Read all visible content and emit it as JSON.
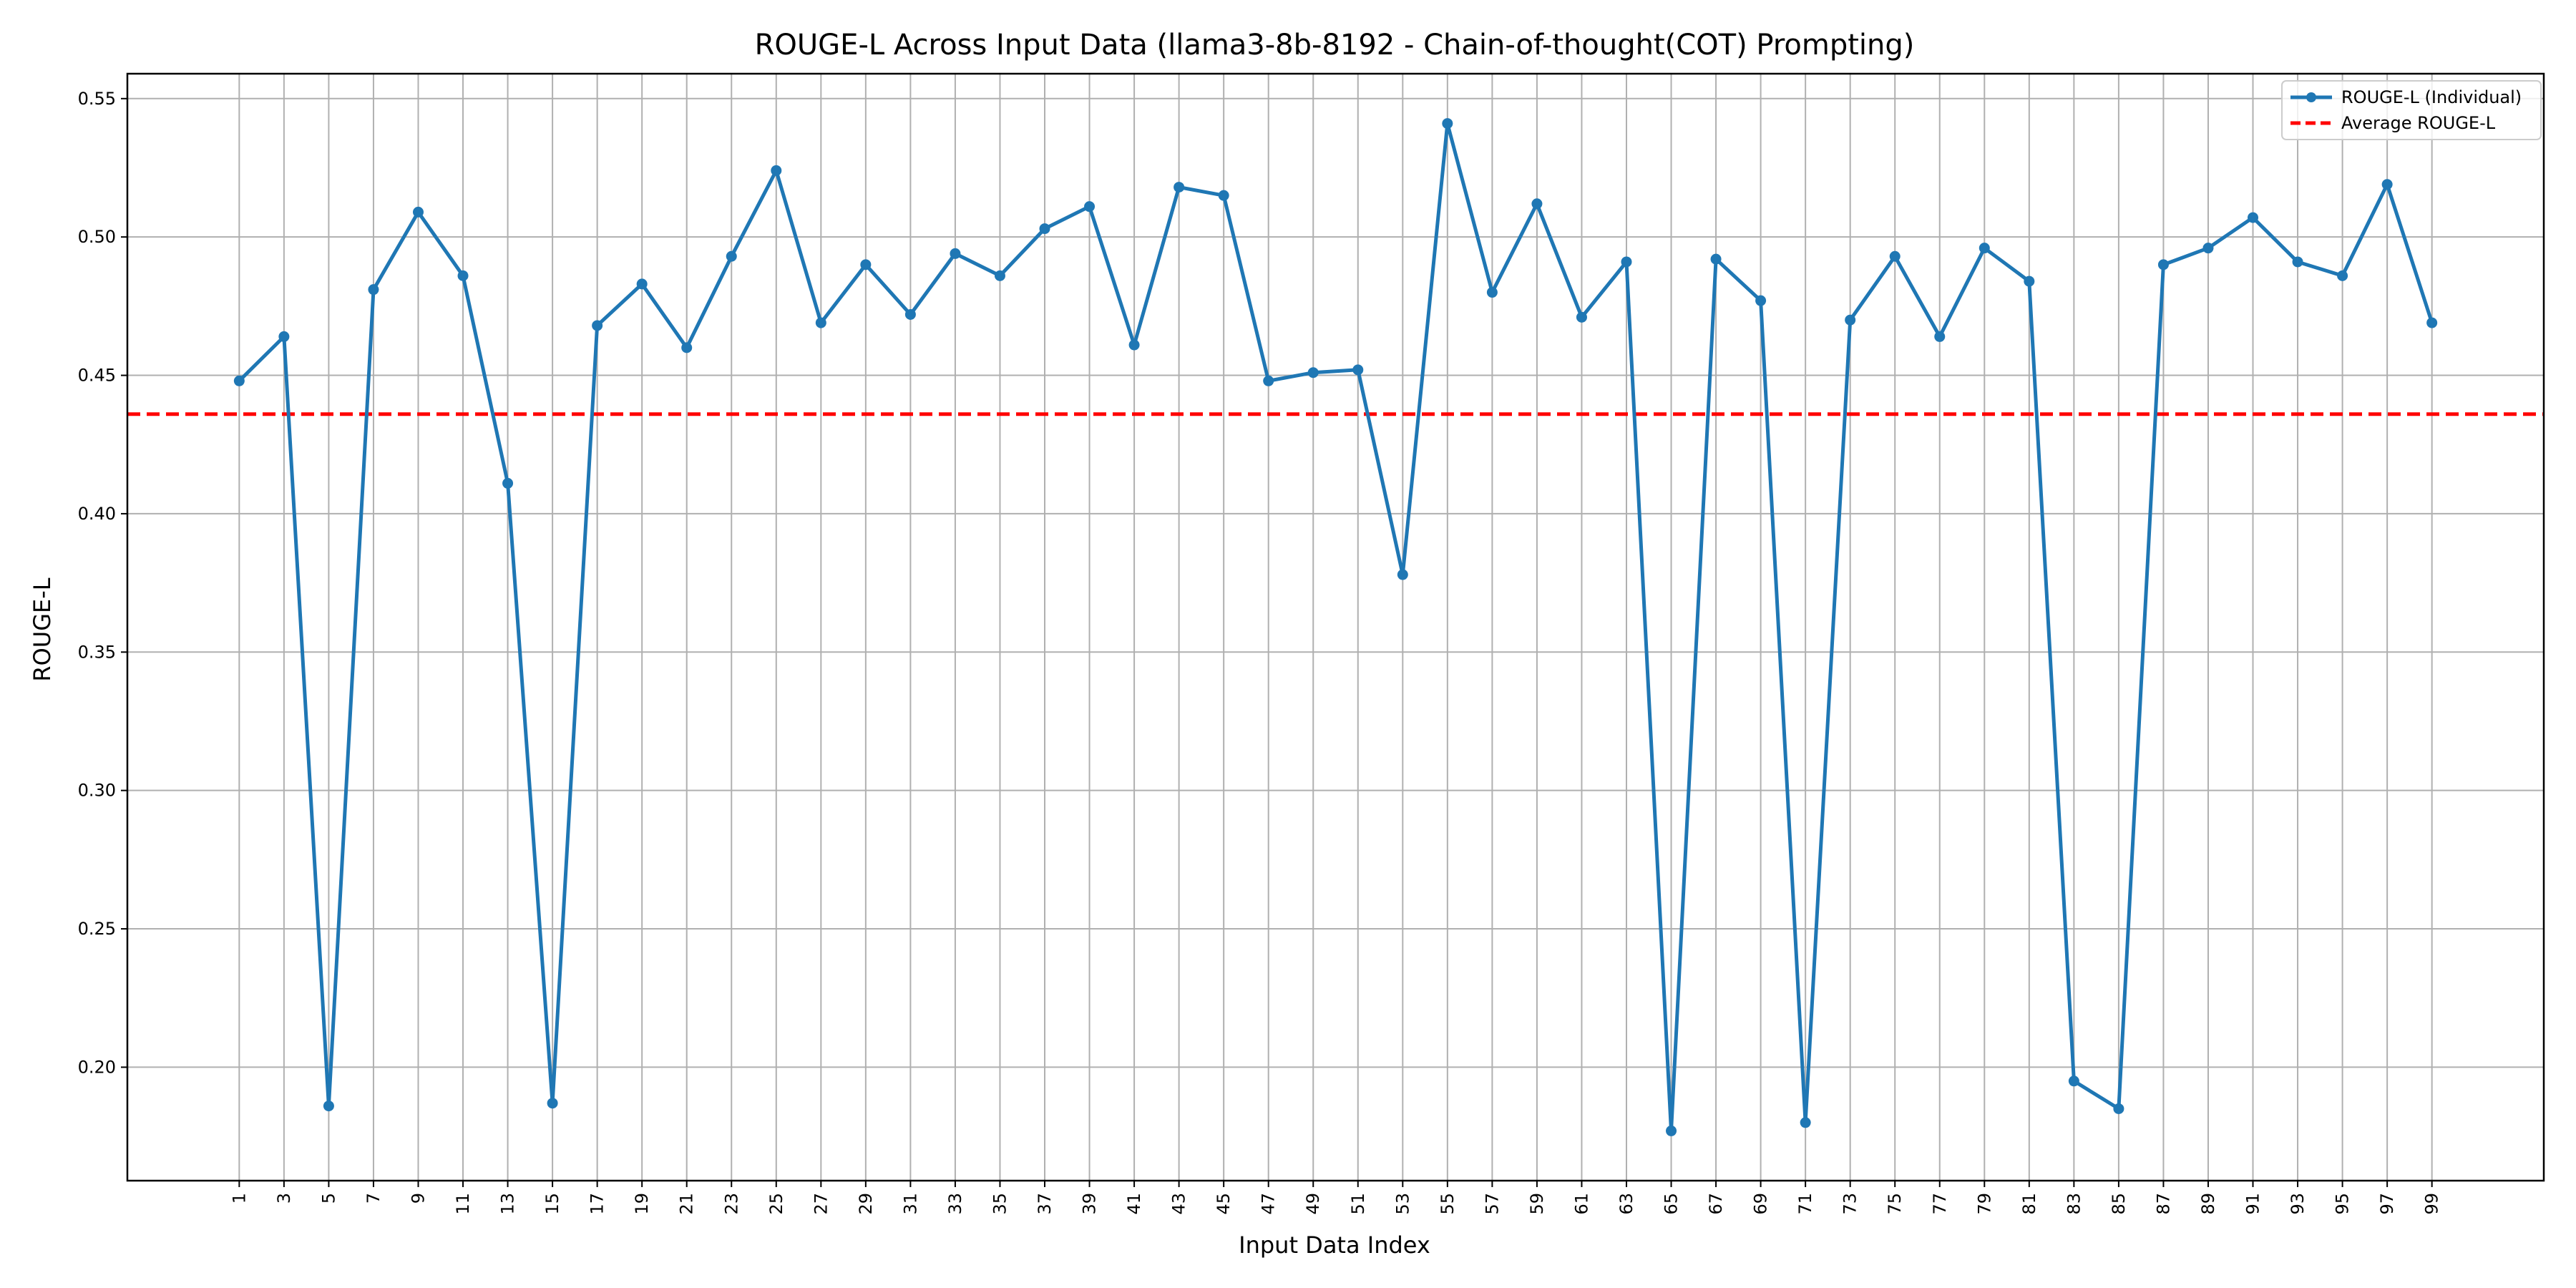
{
  "chart_data": {
    "type": "line",
    "title": "ROUGE-L Across Input Data (llama3-8b-8192 - Chain-of-thought(COT) Prompting)",
    "xlabel": "Input Data Index",
    "ylabel": "ROUGE-L",
    "x": [
      1,
      3,
      5,
      7,
      9,
      11,
      13,
      15,
      17,
      19,
      21,
      23,
      25,
      27,
      29,
      31,
      33,
      35,
      37,
      39,
      41,
      43,
      45,
      47,
      49,
      51,
      53,
      55,
      57,
      59,
      61,
      63,
      65,
      67,
      69,
      71,
      73,
      75,
      77,
      79,
      81,
      83,
      85,
      87,
      89,
      91,
      93,
      95,
      97,
      99
    ],
    "xlim": [
      -4,
      104
    ],
    "ylim": [
      0.159,
      0.559
    ],
    "y_ticks": [
      "0.20",
      "0.25",
      "0.30",
      "0.35",
      "0.40",
      "0.45",
      "0.50",
      "0.55"
    ],
    "series": [
      {
        "name": "ROUGE-L (Individual)",
        "color": "#1f77b4",
        "style": "solid-with-markers",
        "values": [
          0.448,
          0.464,
          0.186,
          0.481,
          0.509,
          0.486,
          0.411,
          0.187,
          0.468,
          0.483,
          0.46,
          0.493,
          0.524,
          0.469,
          0.49,
          0.472,
          0.494,
          0.486,
          0.503,
          0.511,
          0.461,
          0.518,
          0.515,
          0.448,
          0.451,
          0.452,
          0.378,
          0.541,
          0.48,
          0.512,
          0.471,
          0.491,
          0.177,
          0.492,
          0.477,
          0.18,
          0.47,
          0.493,
          0.464,
          0.496,
          0.484,
          0.195,
          0.185,
          0.49,
          0.496,
          0.507,
          0.491,
          0.486,
          0.519,
          0.469
        ]
      },
      {
        "name": "Average ROUGE-L",
        "color": "#ff0000",
        "style": "dashed",
        "value": 0.436
      }
    ],
    "grid": true,
    "legend_position": "top-right"
  }
}
